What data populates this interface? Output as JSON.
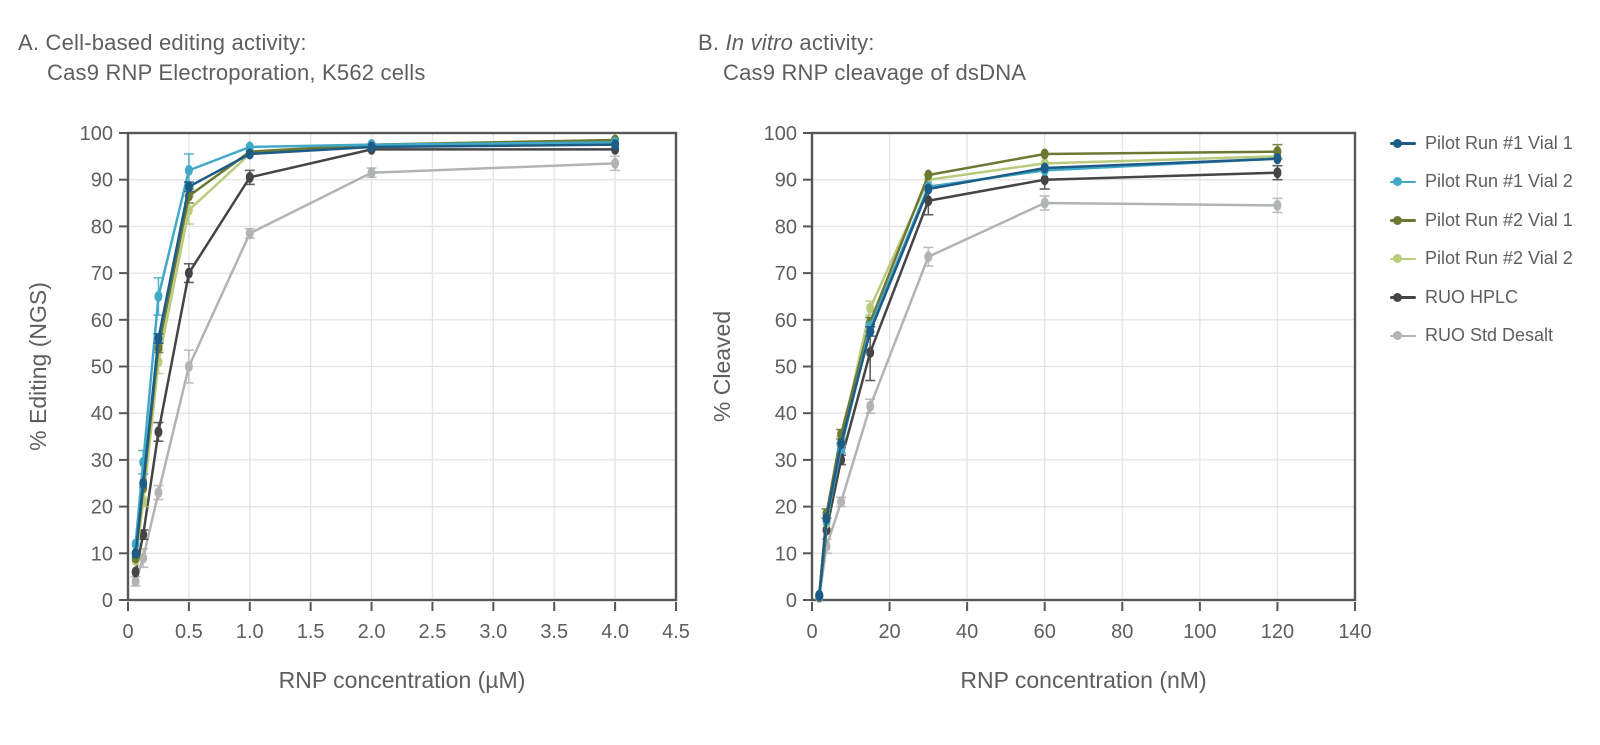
{
  "style": {
    "axis_color": "#55565a",
    "grid_color": "#e4e4e5",
    "text_color": "#5d5e61",
    "background": "#ffffff"
  },
  "legend": {
    "position": "right",
    "items": [
      {
        "label": "Pilot Run #1 Vial 1",
        "color": "#1d5c87"
      },
      {
        "label": "Pilot Run #1 Vial 2",
        "color": "#41a9c8"
      },
      {
        "label": "Pilot Run #2 Vial 1",
        "color": "#6b7933"
      },
      {
        "label": "Pilot Run #2 Vial 2",
        "color": "#b9cb7c"
      },
      {
        "label": "RUO HPLC",
        "color": "#454547"
      },
      {
        "label": "RUO Std Desalt",
        "color": "#b2b4b4"
      }
    ]
  },
  "chart_data": [
    {
      "type": "line",
      "panel": "A",
      "title_prefix": "A.",
      "title_italic": "",
      "title_rest": "Cell-based editing activity:",
      "title_line2": "Cas9 RNP Electroporation, K562 cells",
      "xlabel": "RNP concentration (µM)",
      "ylabel": "% Editing (NGS)",
      "xlim": [
        0,
        4.5
      ],
      "ylim": [
        0,
        100
      ],
      "grid": true,
      "x_ticks": [
        0,
        0.5,
        1.0,
        1.5,
        2.0,
        2.5,
        3.0,
        3.5,
        4.0,
        4.5
      ],
      "x_tick_labels": [
        "0",
        "0.5",
        "1.0",
        "1.5",
        "2.0",
        "2.5",
        "3.0",
        "3.5",
        "4.0",
        "4.5"
      ],
      "y_ticks": [
        0,
        10,
        20,
        30,
        40,
        50,
        60,
        70,
        80,
        90,
        100
      ],
      "y_tick_labels": [
        "0",
        "10",
        "20",
        "30",
        "40",
        "50",
        "60",
        "70",
        "80",
        "90",
        "100"
      ],
      "x": [
        0.0625,
        0.125,
        0.25,
        0.5,
        1,
        2,
        4
      ],
      "series": [
        {
          "name": "Pilot Run #1 Vial 1",
          "color": "#1d5c87",
          "values": [
            10,
            25,
            56,
            88.5,
            95.5,
            97,
            97.5
          ],
          "errors": [
            0.5,
            0.5,
            1,
            1,
            0.5,
            0.5,
            0.5
          ]
        },
        {
          "name": "Pilot Run #1 Vial 2",
          "color": "#41a9c8",
          "values": [
            12,
            29.5,
            65,
            92,
            97,
            97.5,
            98
          ],
          "errors": [
            0.5,
            2.5,
            4,
            3.5,
            0.5,
            0.5,
            0.5
          ]
        },
        {
          "name": "Pilot Run #2 Vial 1",
          "color": "#6b7933",
          "values": [
            9,
            24,
            54,
            86.5,
            96,
            97.5,
            98.5
          ],
          "errors": [
            0.5,
            0.5,
            1,
            1.5,
            0.5,
            0.5,
            0.5
          ]
        },
        {
          "name": "Pilot Run #2 Vial 2",
          "color": "#b9cb7c",
          "values": [
            8.5,
            21,
            51,
            83.5,
            95.5,
            97.5,
            98
          ],
          "errors": [
            0.5,
            1,
            2.5,
            3,
            0.5,
            0.5,
            0.5
          ]
        },
        {
          "name": "RUO HPLC",
          "color": "#454547",
          "values": [
            6,
            14,
            36,
            70,
            90.5,
            96.5,
            96.5
          ],
          "errors": [
            0.5,
            1,
            2,
            2,
            1.5,
            0.5,
            0.5
          ]
        },
        {
          "name": "RUO Std Desalt",
          "color": "#b2b4b4",
          "values": [
            4,
            9,
            23,
            50,
            78.5,
            91.5,
            93.5
          ],
          "errors": [
            1,
            2,
            1.5,
            3.5,
            1,
            1,
            1.5
          ]
        }
      ]
    },
    {
      "type": "line",
      "panel": "B",
      "title_prefix": "B.",
      "title_italic": "In vitro",
      "title_rest": " activity:",
      "title_line2": "Cas9 RNP cleavage of dsDNA",
      "xlabel": "RNP concentration (nM)",
      "ylabel": "% Cleaved",
      "xlim": [
        0,
        140
      ],
      "ylim": [
        0,
        100
      ],
      "grid": true,
      "x_ticks": [
        0,
        20,
        40,
        60,
        80,
        100,
        120,
        140
      ],
      "x_tick_labels": [
        "0",
        "20",
        "40",
        "60",
        "80",
        "100",
        "120",
        "140"
      ],
      "y_ticks": [
        0,
        10,
        20,
        30,
        40,
        50,
        60,
        70,
        80,
        90,
        100
      ],
      "y_tick_labels": [
        "0",
        "10",
        "20",
        "30",
        "40",
        "50",
        "60",
        "70",
        "80",
        "90",
        "100"
      ],
      "x": [
        1.875,
        3.75,
        7.5,
        15,
        30,
        60,
        120
      ],
      "series": [
        {
          "name": "Pilot Run #1 Vial 1",
          "color": "#1d5c87",
          "values": [
            1,
            17.5,
            33.5,
            57.5,
            88,
            92.5,
            94.5
          ],
          "errors": [
            0.3,
            0.5,
            0.5,
            1,
            0.5,
            0.5,
            0.5
          ]
        },
        {
          "name": "Pilot Run #1 Vial 2",
          "color": "#41a9c8",
          "values": [
            1,
            17,
            32.5,
            58.5,
            88.5,
            92,
            94.5
          ],
          "errors": [
            0.3,
            0.5,
            1,
            1,
            0.5,
            0.5,
            0.5
          ]
        },
        {
          "name": "Pilot Run #2 Vial 1",
          "color": "#6b7933",
          "values": [
            1,
            18.5,
            35.5,
            59.5,
            91,
            95.5,
            96
          ],
          "errors": [
            0.3,
            1,
            1,
            1,
            0.5,
            0.5,
            1.5
          ]
        },
        {
          "name": "Pilot Run #2 Vial 2",
          "color": "#b9cb7c",
          "values": [
            1,
            16.5,
            34,
            62.5,
            90,
            93.5,
            95
          ],
          "errors": [
            0.3,
            0.5,
            1,
            1.5,
            1,
            0.5,
            0.5
          ]
        },
        {
          "name": "RUO HPLC",
          "color": "#454547",
          "values": [
            0.8,
            15,
            30,
            53,
            85.5,
            90,
            91.5
          ],
          "errors": [
            0.3,
            0.5,
            1,
            6,
            3,
            2,
            1.5
          ]
        },
        {
          "name": "RUO Std Desalt",
          "color": "#b2b4b4",
          "values": [
            0.5,
            11.5,
            21,
            41.5,
            73.5,
            85,
            84.5
          ],
          "errors": [
            0.3,
            1.5,
            1,
            1.5,
            2,
            1.5,
            1.5
          ]
        }
      ]
    }
  ]
}
